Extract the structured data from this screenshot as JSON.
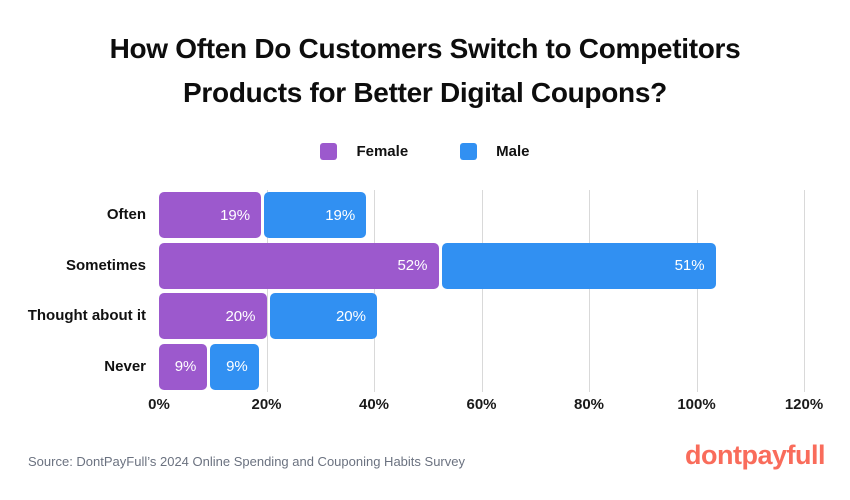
{
  "title": {
    "line1": "How Often Do Customers Switch to Competitors",
    "line2": "Products for Better Digital Coupons?"
  },
  "chart_data": {
    "type": "bar",
    "orientation": "horizontal",
    "stacked": true,
    "title": "How Often Do Customers Switch to Competitors Products for Better Digital Coupons?",
    "categories": [
      "Often",
      "Sometimes",
      "Thought about it",
      "Never"
    ],
    "series": [
      {
        "name": "Female",
        "color": "#9C59CD",
        "values": [
          19,
          52,
          20,
          9
        ]
      },
      {
        "name": "Male",
        "color": "#3190F2",
        "values": [
          19,
          51,
          20,
          9
        ]
      }
    ],
    "value_suffix": "%",
    "x_ticks": [
      "0%",
      "20%",
      "40%",
      "60%",
      "80%",
      "100%",
      "120%"
    ],
    "xlim": [
      0,
      120
    ],
    "grid": true,
    "legend_position": "top",
    "bar_label_color": "#ffffff"
  },
  "footer": {
    "source": "Source: DontPayFull’s 2024 Online Spending and Couponing Habits Survey",
    "logo": "dontpayfull",
    "logo_color": "#F96C5B"
  }
}
